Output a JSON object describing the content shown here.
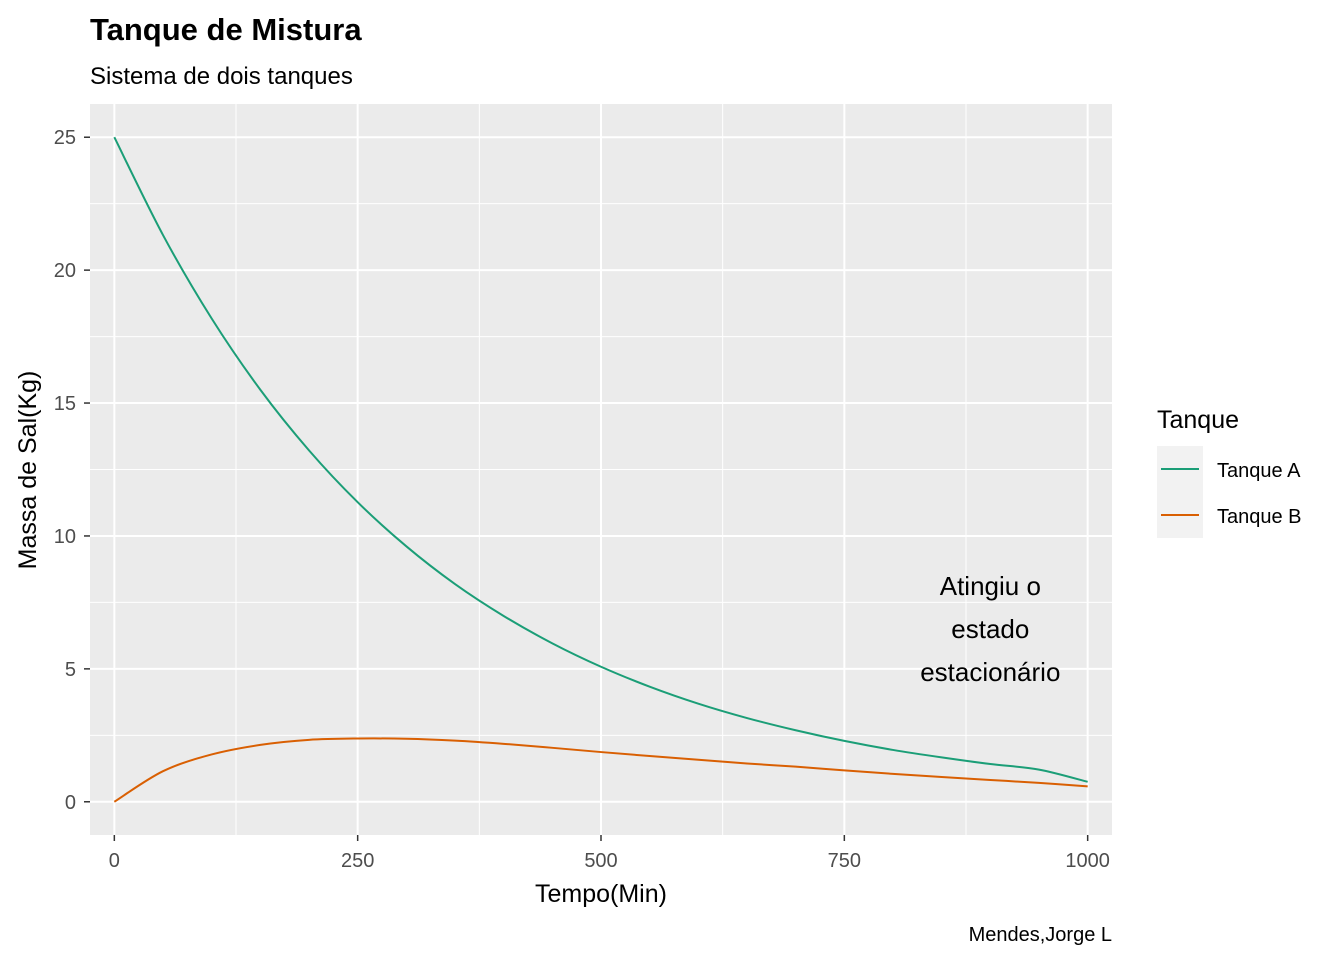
{
  "chart_data": {
    "type": "line",
    "title": "Tanque de Mistura",
    "subtitle": "Sistema de dois tanques",
    "xlabel": "Tempo(Min)",
    "ylabel": "Massa de Sal(Kg)",
    "caption": "Mendes,Jorge L",
    "xlim": [
      -25,
      1025
    ],
    "ylim": [
      -1.25,
      26.25
    ],
    "x_ticks": [
      0,
      250,
      500,
      750,
      1000
    ],
    "x_tick_labels": [
      "0",
      "250",
      "500",
      "750",
      "1000"
    ],
    "y_ticks": [
      0,
      5,
      10,
      15,
      20,
      25
    ],
    "y_tick_labels": [
      "0",
      "5",
      "10",
      "15",
      "20",
      "25"
    ],
    "grid": true,
    "legend": {
      "title": "Tanque",
      "position": "right"
    },
    "annotation": {
      "lines": [
        "Atingiu o",
        "estado",
        "estacionário"
      ],
      "x": 900,
      "y": 6.5
    },
    "series": [
      {
        "name": "Tanque A",
        "color": "#1b9e77",
        "x": [
          0,
          50,
          100,
          150,
          200,
          250,
          300,
          350,
          400,
          450,
          500,
          550,
          600,
          650,
          700,
          750,
          800,
          850,
          900,
          950,
          1000
        ],
        "values": [
          25.0,
          21.32,
          18.18,
          15.5,
          13.22,
          11.27,
          9.61,
          8.19,
          6.99,
          5.96,
          5.08,
          4.33,
          3.69,
          3.15,
          2.69,
          2.29,
          1.95,
          1.67,
          1.42,
          1.21,
          0.75
        ]
      },
      {
        "name": "Tanque B",
        "color": "#d95f02",
        "x": [
          0,
          50,
          100,
          150,
          200,
          250,
          300,
          350,
          400,
          450,
          500,
          550,
          600,
          650,
          700,
          750,
          800,
          850,
          900,
          950,
          1000
        ],
        "values": [
          0.0,
          1.15,
          1.78,
          2.14,
          2.33,
          2.38,
          2.37,
          2.3,
          2.18,
          2.03,
          1.87,
          1.72,
          1.58,
          1.44,
          1.32,
          1.18,
          1.05,
          0.93,
          0.82,
          0.71,
          0.58
        ]
      }
    ]
  }
}
